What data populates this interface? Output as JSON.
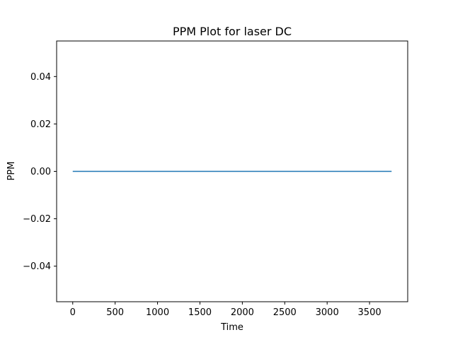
{
  "chart_data": {
    "type": "line",
    "title": "PPM Plot for laser DC",
    "xlabel": "Time",
    "ylabel": "PPM",
    "xlim": [
      -190,
      3950
    ],
    "ylim": [
      -0.055,
      0.055
    ],
    "xticks": [
      0,
      500,
      1000,
      1500,
      2000,
      2500,
      3000,
      3500
    ],
    "xtick_labels": [
      "0",
      "500",
      "1000",
      "1500",
      "2000",
      "2500",
      "3000",
      "3500"
    ],
    "yticks": [
      -0.04,
      -0.02,
      0.0,
      0.02,
      0.04
    ],
    "ytick_labels": [
      "−0.04",
      "−0.02",
      "0.00",
      "0.02",
      "0.04"
    ],
    "grid": false,
    "series": [
      {
        "color": "#1f77b4",
        "x": [
          0,
          3760
        ],
        "y": [
          0.0,
          0.0
        ]
      }
    ]
  }
}
